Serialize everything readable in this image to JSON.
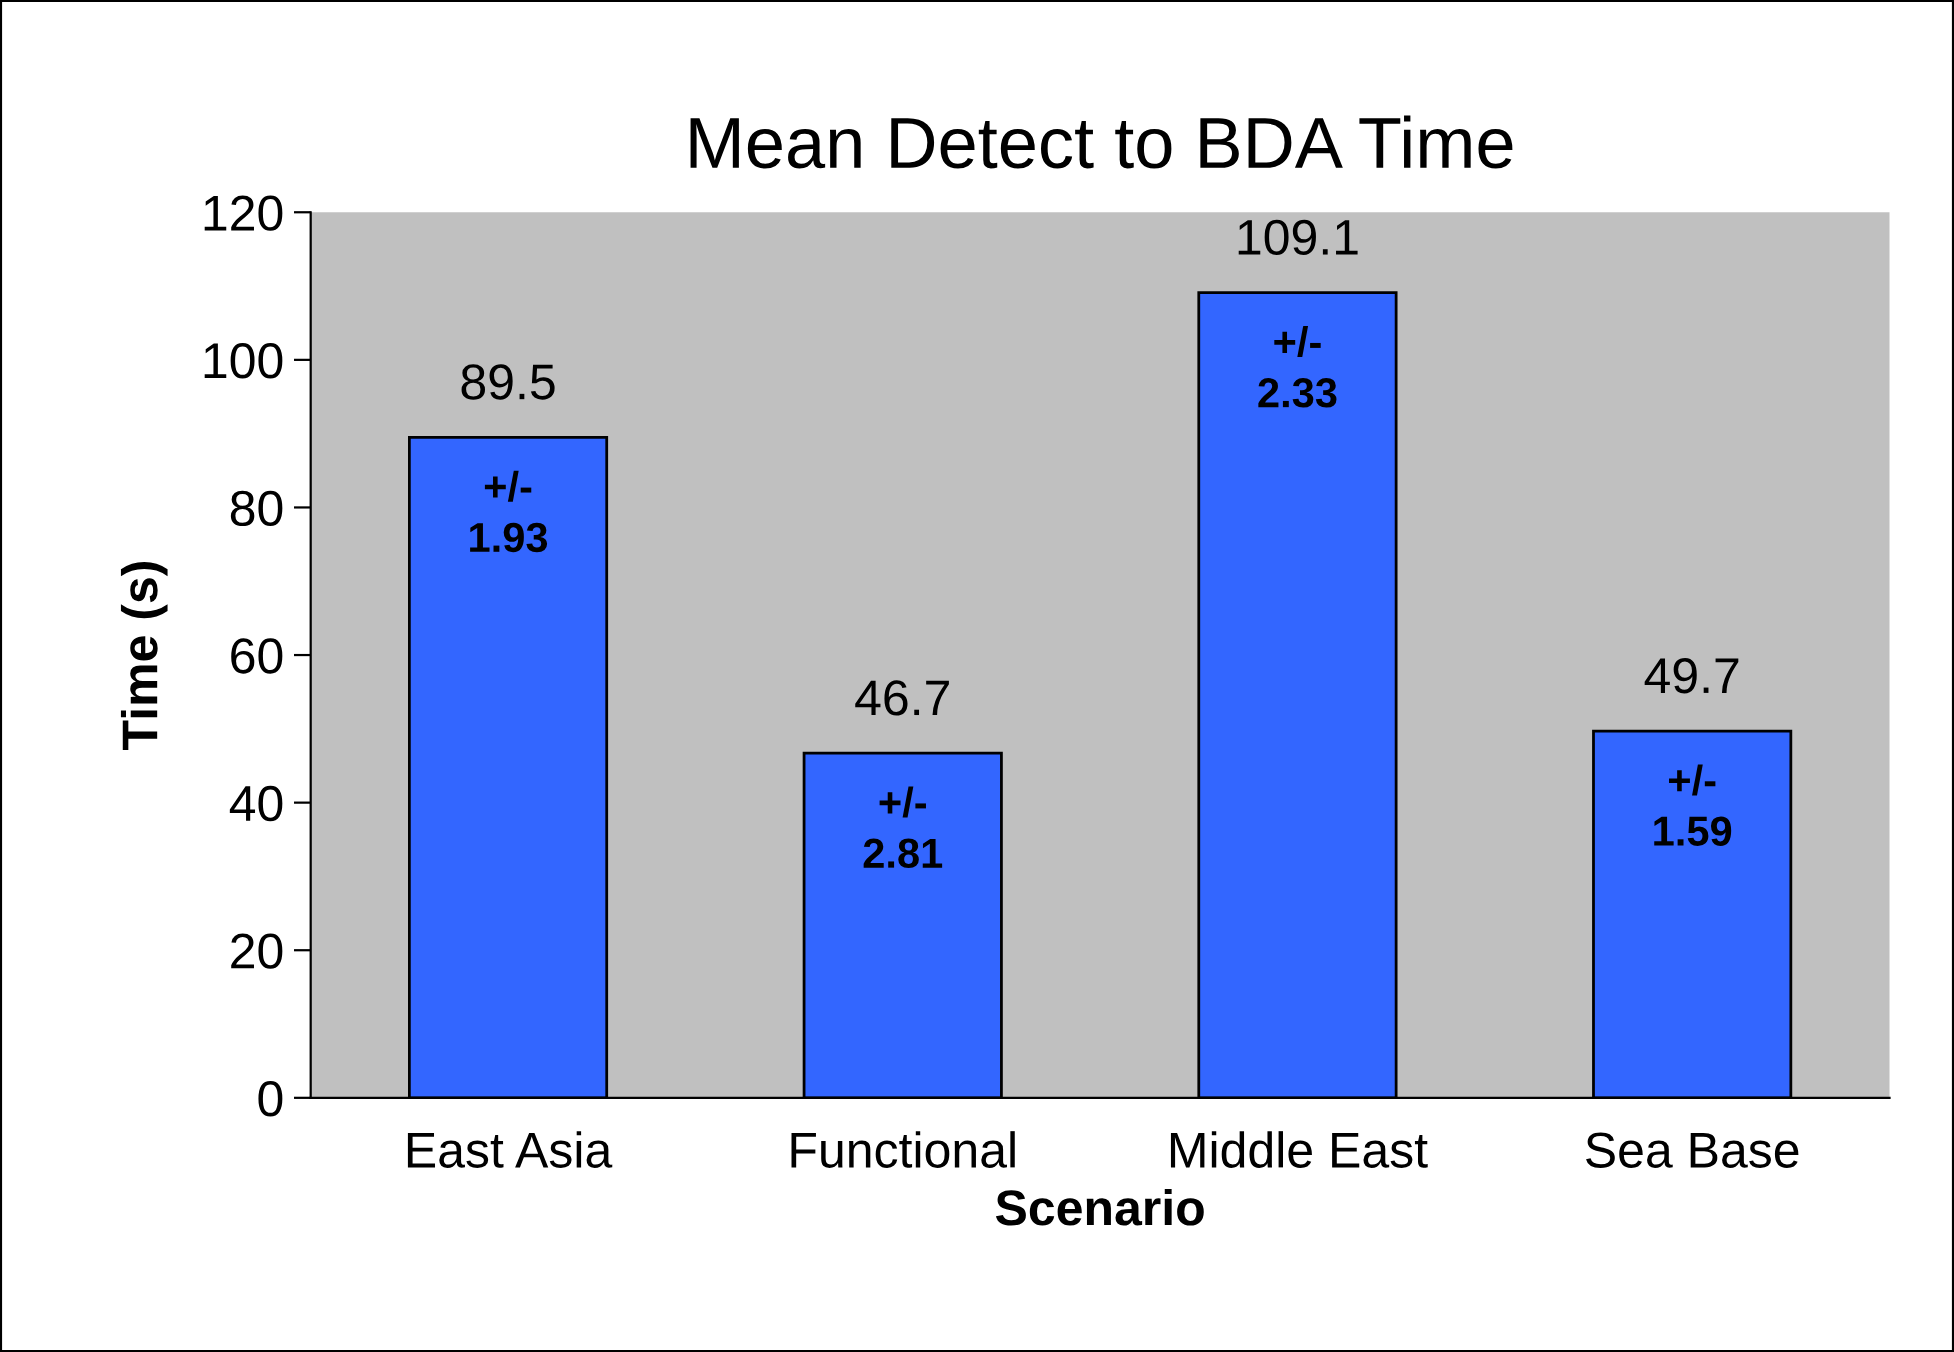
{
  "chart_data": {
    "type": "bar",
    "title": "Mean Detect to BDA Time",
    "xlabel": "Scenario",
    "ylabel": "Time (s)",
    "categories": [
      "East Asia",
      "Functional",
      "Middle East",
      "Sea Base"
    ],
    "values": [
      89.5,
      46.7,
      109.1,
      49.7
    ],
    "color": "#3366ff",
    "data_labels": true,
    "ylim": [
      0,
      120
    ],
    "yticks": [
      0,
      20,
      40,
      60,
      80,
      100,
      120
    ],
    "grid": false,
    "legend": false,
    "annotations": [
      {
        "text": "+/-\n1.93",
        "x": "East Asia",
        "y": 89.5
      },
      {
        "text": "+/-\n2.81",
        "x": "Functional",
        "y": 46.7
      },
      {
        "text": "+/-\n2.33",
        "x": "Middle East",
        "y": 109.1
      },
      {
        "text": "+/-\n1.59",
        "x": "Sea Base",
        "y": 49.7
      }
    ]
  }
}
